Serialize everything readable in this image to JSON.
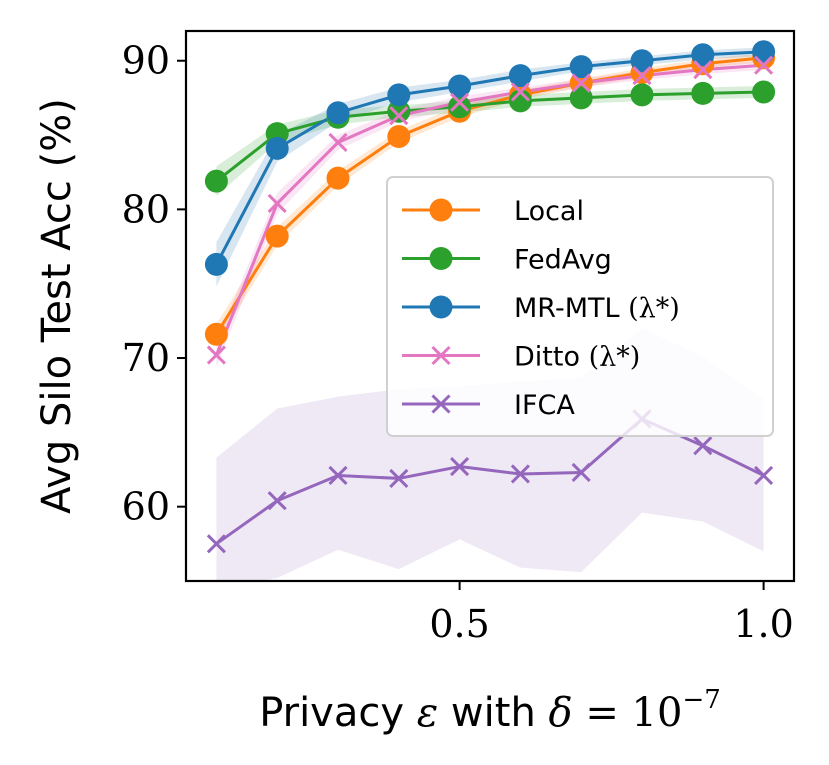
{
  "chart_data": {
    "type": "line",
    "title": "",
    "xlabel_prefix": "Privacy ",
    "xlabel_eps": "ε",
    "xlabel_mid": " with ",
    "xlabel_delta": "δ",
    "xlabel_eq": " = 10",
    "xlabel_exp": "−7",
    "ylabel": "Avg Silo Test Acc (%)",
    "xlim": [
      0.05,
      1.05
    ],
    "ylim": [
      55,
      92
    ],
    "xticks": [
      0.5,
      1.0
    ],
    "xtick_labels": [
      "0.5",
      "1.0"
    ],
    "yticks": [
      60,
      70,
      80,
      90
    ],
    "ytick_labels": [
      "60",
      "70",
      "80",
      "90"
    ],
    "grid": false,
    "legend_position": "center-right",
    "x": [
      0.1,
      0.2,
      0.3,
      0.4,
      0.5,
      0.6,
      0.7,
      0.8,
      0.9,
      1.0
    ],
    "series": [
      {
        "name": "Local",
        "color": "#ff7f0e",
        "marker": "circle",
        "values": [
          71.6,
          78.2,
          82.1,
          84.9,
          86.6,
          87.7,
          88.5,
          89.2,
          89.8,
          90.2
        ],
        "band_lower": [
          70.9,
          77.6,
          81.6,
          84.5,
          86.2,
          87.4,
          88.2,
          88.9,
          89.5,
          89.9
        ],
        "band_upper": [
          72.3,
          78.8,
          82.6,
          85.3,
          87.0,
          88.0,
          88.8,
          89.5,
          90.1,
          90.5
        ]
      },
      {
        "name": "FedAvg",
        "color": "#2ca02c",
        "marker": "circle",
        "values": [
          81.9,
          85.1,
          86.2,
          86.6,
          86.9,
          87.3,
          87.5,
          87.7,
          87.8,
          87.9
        ],
        "band_lower": [
          80.9,
          84.5,
          85.7,
          86.2,
          86.5,
          86.9,
          87.1,
          87.3,
          87.4,
          87.5
        ],
        "band_upper": [
          82.9,
          85.7,
          86.7,
          87.0,
          87.3,
          87.7,
          87.9,
          88.1,
          88.2,
          88.3
        ]
      },
      {
        "name": "MR-MTL",
        "name_suffix": "(λ*)",
        "color": "#1f77b4",
        "marker": "circle",
        "values": [
          76.3,
          84.1,
          86.5,
          87.7,
          88.3,
          89.0,
          89.6,
          90.0,
          90.4,
          90.6
        ],
        "band_lower": [
          74.8,
          83.2,
          85.9,
          87.2,
          87.9,
          88.6,
          89.3,
          89.7,
          90.1,
          90.3
        ],
        "band_upper": [
          77.8,
          85.0,
          87.1,
          88.2,
          88.7,
          89.4,
          89.9,
          90.3,
          90.7,
          90.9
        ]
      },
      {
        "name": "Ditto",
        "name_suffix": "(λ*)",
        "color": "#e377c2",
        "marker": "x",
        "values": [
          70.2,
          80.4,
          84.5,
          86.3,
          87.2,
          87.9,
          88.5,
          89.0,
          89.4,
          89.7
        ],
        "band_lower": [
          69.4,
          79.7,
          84.0,
          85.9,
          86.8,
          87.6,
          88.2,
          88.7,
          89.1,
          89.4
        ],
        "band_upper": [
          71.0,
          81.1,
          85.0,
          86.7,
          87.6,
          88.2,
          88.8,
          89.3,
          89.7,
          90.0
        ]
      },
      {
        "name": "IFCA",
        "color": "#9467bd",
        "marker": "x",
        "values": [
          57.5,
          60.4,
          62.1,
          61.9,
          62.7,
          62.2,
          62.3,
          65.9,
          64.1,
          62.1
        ],
        "band_lower": [
          54.5,
          55.2,
          57.1,
          55.8,
          57.8,
          55.9,
          55.6,
          59.6,
          59.0,
          57.0
        ],
        "band_upper": [
          63.3,
          66.6,
          67.4,
          67.9,
          68.1,
          68.4,
          68.7,
          72.0,
          70.1,
          67.2
        ]
      }
    ]
  }
}
